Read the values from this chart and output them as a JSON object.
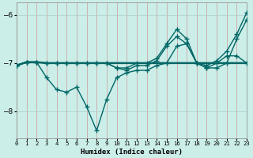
{
  "title": "",
  "xlabel": "Humidex (Indice chaleur)",
  "background_color": "#cceee8",
  "line_color": "#006666",
  "grid_color": "#aadddd",
  "xlim": [
    0,
    23
  ],
  "ylim": [
    -8.55,
    -5.75
  ],
  "yticks": [
    -8,
    -7,
    -6
  ],
  "xticks": [
    0,
    1,
    2,
    3,
    4,
    5,
    6,
    7,
    8,
    9,
    10,
    11,
    12,
    13,
    14,
    15,
    16,
    17,
    18,
    19,
    20,
    21,
    22,
    23
  ],
  "series": [
    {
      "x": [
        0,
        1,
        2,
        3,
        4,
        5,
        6,
        7,
        8,
        9,
        10,
        11,
        12,
        13,
        14,
        15,
        16,
        17,
        18,
        19,
        20,
        21,
        22,
        23
      ],
      "y": [
        -7.05,
        -6.98,
        -6.98,
        -7.0,
        -7.0,
        -7.0,
        -7.0,
        -7.0,
        -7.0,
        -7.0,
        -7.0,
        -7.0,
        -7.0,
        -7.0,
        -7.0,
        -7.0,
        -7.0,
        -7.0,
        -7.0,
        -7.0,
        -7.0,
        -7.0,
        -7.0,
        -7.0
      ],
      "marker": null,
      "linewidth": 1.8
    },
    {
      "x": [
        0,
        1,
        2,
        3,
        4,
        5,
        6,
        7,
        8,
        9,
        10,
        11,
        12,
        13,
        14,
        15,
        16,
        17,
        18,
        19,
        20,
        21,
        22,
        23
      ],
      "y": [
        -7.05,
        -6.98,
        -6.98,
        -7.3,
        -7.55,
        -7.6,
        -7.5,
        -7.9,
        -8.4,
        -7.75,
        -7.3,
        -7.2,
        -7.15,
        -7.15,
        -7.05,
        -7.0,
        -6.65,
        -6.6,
        -7.0,
        -7.1,
        -7.1,
        -7.0,
        -6.5,
        -6.1
      ],
      "marker": "+",
      "markersize": 4,
      "linewidth": 1.0
    },
    {
      "x": [
        0,
        1,
        2,
        3,
        4,
        5,
        6,
        7,
        8,
        9,
        10,
        11,
        12,
        13,
        14,
        15,
        16,
        17,
        18,
        19,
        20,
        21,
        22,
        23
      ],
      "y": [
        -7.05,
        -6.98,
        -6.98,
        -7.0,
        -7.0,
        -7.0,
        -7.0,
        -7.0,
        -7.0,
        -7.0,
        -7.1,
        -7.1,
        -7.0,
        -7.0,
        -6.9,
        -6.6,
        -6.3,
        -6.5,
        -7.0,
        -7.05,
        -6.95,
        -6.75,
        -6.4,
        -5.95
      ],
      "marker": "+",
      "markersize": 4,
      "linewidth": 1.0
    },
    {
      "x": [
        0,
        1,
        2,
        3,
        4,
        5,
        6,
        7,
        8,
        9,
        10,
        11,
        12,
        13,
        14,
        15,
        16,
        17,
        18,
        19,
        20,
        21,
        22,
        23
      ],
      "y": [
        -7.05,
        -6.98,
        -6.98,
        -7.0,
        -7.0,
        -7.0,
        -7.0,
        -7.0,
        -7.0,
        -7.0,
        -7.1,
        -7.15,
        -7.05,
        -7.05,
        -6.95,
        -6.65,
        -6.45,
        -6.6,
        -7.0,
        -7.1,
        -7.0,
        -6.85,
        -6.85,
        -7.0
      ],
      "marker": "+",
      "markersize": 4,
      "linewidth": 1.0
    }
  ]
}
